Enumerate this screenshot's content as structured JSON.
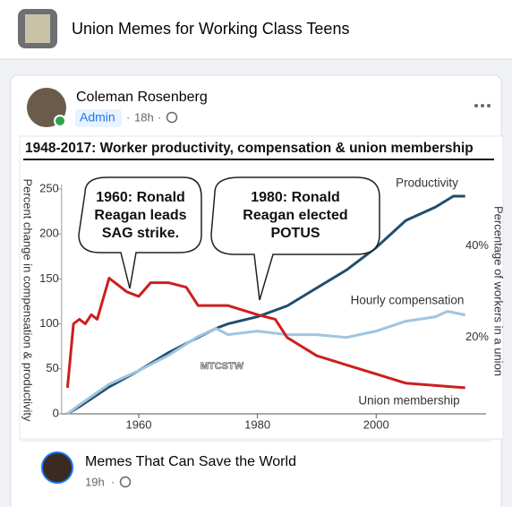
{
  "header": {
    "group_name": "Union Memes for Working Class Teens"
  },
  "post": {
    "author": "Coleman Rosenberg",
    "role": "Admin",
    "time": "18h",
    "chart": {
      "type": "line",
      "title": "1948-2017: Worker productivity, compensation & union membership",
      "ylabel": "Percent change in compensation & productivity",
      "y2label": "Percentage of workers in a union",
      "xlim": [
        1947,
        2017
      ],
      "xticks": [
        1960,
        1980,
        2000
      ],
      "ylim": [
        0,
        250
      ],
      "yticks": [
        0,
        50,
        100,
        150,
        200,
        250
      ],
      "y2lim": [
        3.3,
        52.5
      ],
      "y2ticks": [
        {
          "value": 20,
          "label": "20%"
        },
        {
          "value": 40,
          "label": "40%"
        }
      ],
      "series": [
        {
          "name": "Productivity",
          "color": "#1f4e6e",
          "x": [
            1948,
            1950,
            1955,
            1960,
            1965,
            1970,
            1973,
            1975,
            1980,
            1985,
            1990,
            1995,
            2000,
            2005,
            2010,
            2013,
            2015
          ],
          "values": [
            0,
            8,
            30,
            48,
            68,
            85,
            95,
            100,
            108,
            120,
            140,
            160,
            185,
            215,
            230,
            242,
            242
          ]
        },
        {
          "name": "Hourly compensation",
          "color": "#9fc5e0",
          "x": [
            1948,
            1950,
            1955,
            1960,
            1965,
            1970,
            1973,
            1975,
            1980,
            1985,
            1990,
            1995,
            2000,
            2005,
            2010,
            2012,
            2015
          ],
          "values": [
            0,
            10,
            33,
            48,
            65,
            86,
            95,
            88,
            92,
            88,
            88,
            85,
            92,
            103,
            108,
            114,
            110
          ]
        },
        {
          "name": "Union membership",
          "color": "#cc1f1f",
          "axis": "y2",
          "x": [
            1948,
            1949,
            1950,
            1951,
            1952,
            1953,
            1955,
            1958,
            1960,
            1962,
            1965,
            1968,
            1970,
            1975,
            1980,
            1983,
            1985,
            1990,
            1995,
            2000,
            2005,
            2010,
            2015
          ],
          "values": [
            9,
            23,
            24,
            23,
            25,
            24,
            33,
            30,
            29,
            32,
            32,
            31,
            27,
            27,
            25,
            24,
            20,
            16,
            14,
            12,
            10,
            9.5,
            9
          ]
        }
      ],
      "annotations": [
        {
          "lines": [
            "1960: Ronald",
            "Reagan leads",
            "SAG strike."
          ]
        },
        {
          "lines": [
            "1980: Ronald",
            "Reagan elected",
            "POTUS"
          ]
        }
      ],
      "watermark": "MTCSTW"
    }
  },
  "shared_from": {
    "page_name": "Memes That Can Save the World",
    "time": "19h"
  }
}
